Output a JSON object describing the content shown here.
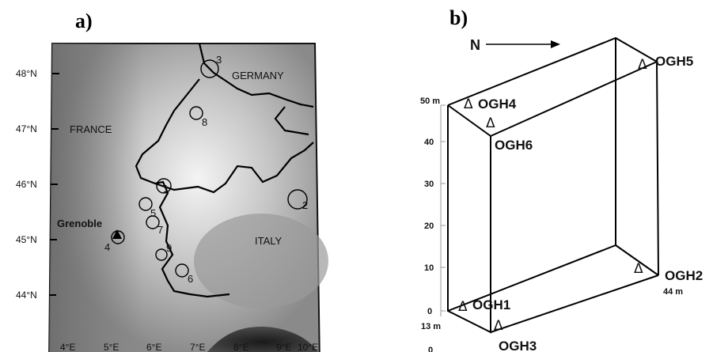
{
  "panel_a": {
    "label": "a)",
    "lat_labels": [
      "48°N",
      "47°N",
      "46°N",
      "45°N",
      "44°N"
    ],
    "lon_labels": [
      "4°E",
      "5°E",
      "6°E",
      "7°E",
      "8°E",
      "9°E",
      "10°E"
    ],
    "countries": [
      "GERMANY",
      "FRANCE",
      "ITALY"
    ],
    "city": "Grenoble",
    "sites": [
      "1",
      "2",
      "3",
      "4",
      "5",
      "6",
      "7",
      "8",
      "9"
    ]
  },
  "panel_b": {
    "label": "b)",
    "north_label": "N",
    "height_ticks": [
      "50 m",
      "40",
      "30",
      "20",
      "10",
      "0"
    ],
    "depth_label": "13 m",
    "width_label": "44 m",
    "corner_small": "0",
    "stations": [
      "OGH1",
      "OGH2",
      "OGH3",
      "OGH4",
      "OGH5",
      "OGH6"
    ],
    "marker_symbol": "Δ"
  }
}
